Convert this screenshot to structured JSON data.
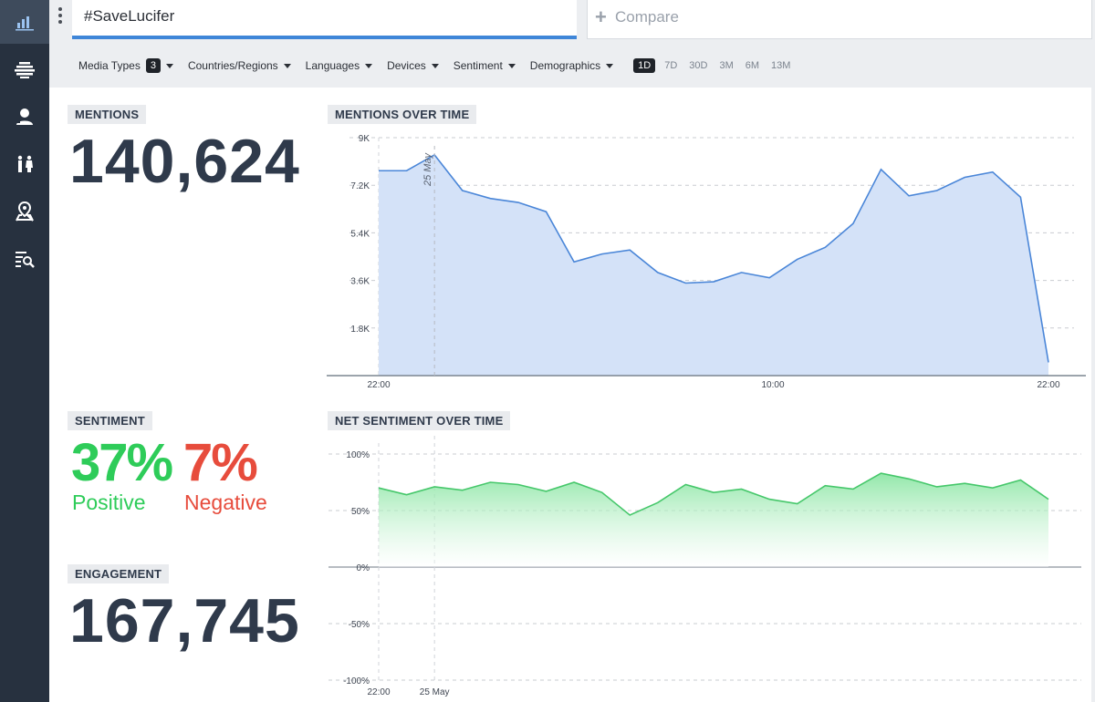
{
  "rail": {
    "items": [
      {
        "name": "overview-icon",
        "active": true
      },
      {
        "name": "topics-icon"
      },
      {
        "name": "influencers-icon"
      },
      {
        "name": "demographics-icon"
      },
      {
        "name": "geography-icon"
      },
      {
        "name": "search-results-icon"
      }
    ]
  },
  "header": {
    "query": "#SaveLucifer",
    "compare_label": "Compare",
    "filters": [
      {
        "label": "Media Types",
        "badge": "3"
      },
      {
        "label": "Countries/Regions"
      },
      {
        "label": "Languages"
      },
      {
        "label": "Devices"
      },
      {
        "label": "Sentiment"
      },
      {
        "label": "Demographics"
      }
    ],
    "ranges": [
      "1D",
      "7D",
      "30D",
      "3M",
      "6M",
      "13M"
    ],
    "active_range": "1D"
  },
  "mentions": {
    "label": "MENTIONS",
    "value": "140,624"
  },
  "sentiment": {
    "label": "SENTIMENT",
    "positive_value": "37%",
    "positive_label": "Positive",
    "negative_value": "7%",
    "negative_label": "Negative"
  },
  "engagement": {
    "label": "ENGAGEMENT",
    "value": "167,745"
  },
  "colors": {
    "accent": "#3f86d8",
    "positive": "#2ecc59",
    "negative": "#e74c3c",
    "mentions_fill": "#d4e2f8",
    "mentions_line": "#4a86d8",
    "sentiment_line": "#45c76a"
  },
  "chart_data": [
    {
      "type": "area",
      "title": "MENTIONS OVER TIME",
      "y_ticks": [
        "1.8K",
        "3.6K",
        "5.4K",
        "7.2K",
        "9K"
      ],
      "y_tick_values": [
        1800,
        3600,
        5400,
        7200,
        9000
      ],
      "ylim": [
        0,
        9000
      ],
      "x_tick_labels": [
        "22:00",
        "10:00",
        "22:00"
      ],
      "annotation": "25 May",
      "series": [
        {
          "values": [
            7750,
            7750,
            8350,
            7000,
            6700,
            6550,
            6200,
            4300,
            4600,
            4750,
            3900,
            3500,
            3550,
            3900,
            3700,
            4400,
            4850,
            5750,
            7800,
            6800,
            7000,
            7500,
            7700,
            6750,
            500
          ]
        }
      ],
      "grid": true
    },
    {
      "type": "area",
      "title": "NET SENTIMENT OVER TIME",
      "y_ticks": [
        "100%",
        "50%",
        "0%",
        "-50%",
        "-100%"
      ],
      "y_tick_values": [
        100,
        50,
        0,
        -50,
        -100
      ],
      "ylim": [
        -100,
        100
      ],
      "x_tick_labels": [
        "22:00",
        "25 May"
      ],
      "series": [
        {
          "values": [
            70,
            64,
            71,
            68,
            75,
            73,
            67,
            75,
            66,
            46,
            57,
            73,
            66,
            69,
            60,
            56,
            72,
            69,
            83,
            78,
            71,
            74,
            70,
            77,
            60
          ]
        }
      ],
      "grid": true
    }
  ]
}
